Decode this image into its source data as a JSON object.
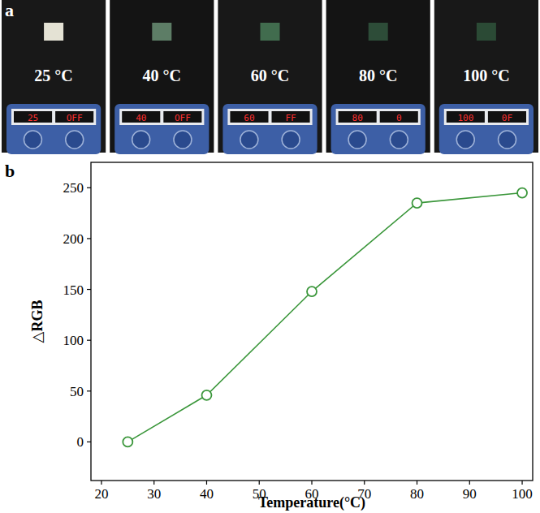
{
  "photo": {
    "label": "a",
    "panels": [
      {
        "temperature": "25 °C",
        "display": "25",
        "display_status": "OFF",
        "sample_color": "#e4e2d4"
      },
      {
        "temperature": "40 °C",
        "display": "40",
        "display_status": "OFF",
        "sample_color": "#5d7d66"
      },
      {
        "temperature": "60 °C",
        "display": "60",
        "display_status": "FF",
        "sample_color": "#416c4e"
      },
      {
        "temperature": "80 °C",
        "display": "80",
        "display_status": "0",
        "sample_color": "#2d4c38"
      },
      {
        "temperature": "100 °C",
        "display": "100",
        "display_status": "0F",
        "sample_color": "#2b4a35"
      }
    ]
  },
  "chart_data": {
    "type": "line",
    "panel_label": "b",
    "x_label": "Temperature(°C)",
    "y_label": "△RGB",
    "x": [
      25,
      40,
      60,
      80,
      100
    ],
    "values": [
      0,
      46,
      148,
      235,
      245
    ],
    "color": "#3a963a",
    "marker": "circle-open",
    "line_style": "solid",
    "xlim": [
      18,
      102
    ],
    "xticks": [
      20,
      30,
      40,
      50,
      60,
      70,
      80,
      90,
      100
    ],
    "ylim": [
      -38,
      275
    ],
    "yticks": [
      0,
      50,
      100,
      150,
      200,
      250
    ],
    "grid": false
  }
}
